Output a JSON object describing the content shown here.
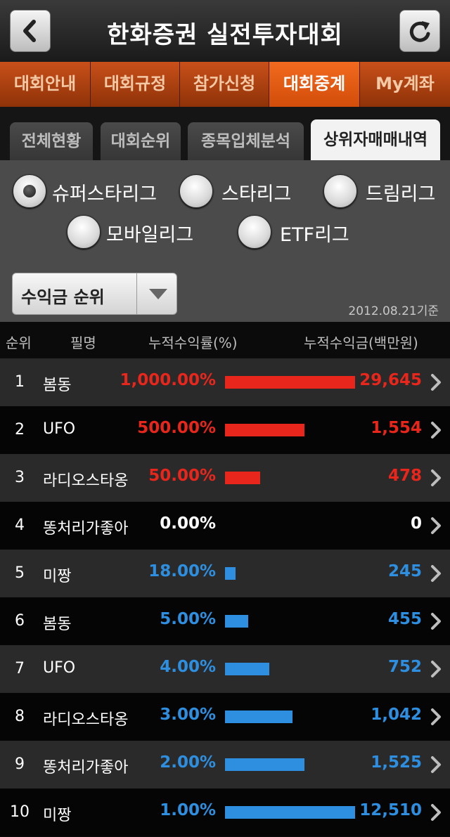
{
  "header": {
    "title": "한화증권 실전투자대회"
  },
  "main_tabs": [
    "대회안내",
    "대회규정",
    "참가신청",
    "대회중계",
    "My계좌"
  ],
  "main_tab_active": 3,
  "sub_tabs": [
    "전체현황",
    "대회순위",
    "종목입체분석",
    "상위자매매내역"
  ],
  "sub_tab_active": 3,
  "leagues": [
    {
      "label": "슈퍼스타리그",
      "selected": true
    },
    {
      "label": "스타리그",
      "selected": false
    },
    {
      "label": "드림리그",
      "selected": false
    },
    {
      "label": "모바일리그",
      "selected": false
    },
    {
      "label": "ETF리그",
      "selected": false
    }
  ],
  "dropdown": {
    "value": "수익금 순위"
  },
  "base_date": "2012.08.21기준",
  "table": {
    "headers": {
      "rank": "순위",
      "name": "필명",
      "rate": "누적수익률(%)",
      "amount": "누적수익금(백만원)"
    },
    "rows": [
      {
        "rank": "1",
        "name": "봄동",
        "rate": "1,000.00%",
        "amount": "29,645",
        "tone": "red",
        "bar_fraction": 1.0
      },
      {
        "rank": "2",
        "name": "UFO",
        "rate": "500.00%",
        "amount": "1,554",
        "tone": "red",
        "bar_fraction": 0.61
      },
      {
        "rank": "3",
        "name": "라디오스타옹",
        "rate": "50.00%",
        "amount": "478",
        "tone": "red",
        "bar_fraction": 0.27
      },
      {
        "rank": "4",
        "name": "똥처리가좋아",
        "rate": "0.00%",
        "amount": "0",
        "tone": "white",
        "bar_fraction": 0
      },
      {
        "rank": "5",
        "name": "미짱",
        "rate": "18.00%",
        "amount": "245",
        "tone": "blue",
        "bar_fraction": 0.08
      },
      {
        "rank": "6",
        "name": "봄동",
        "rate": "5.00%",
        "amount": "455",
        "tone": "blue",
        "bar_fraction": 0.18
      },
      {
        "rank": "7",
        "name": "UFO",
        "rate": "4.00%",
        "amount": "752",
        "tone": "blue",
        "bar_fraction": 0.34
      },
      {
        "rank": "8",
        "name": "라디오스타옹",
        "rate": "3.00%",
        "amount": "1,042",
        "tone": "blue",
        "bar_fraction": 0.52
      },
      {
        "rank": "9",
        "name": "똥처리가좋아",
        "rate": "2.00%",
        "amount": "1,525",
        "tone": "blue",
        "bar_fraction": 0.61
      },
      {
        "rank": "10",
        "name": "미짱",
        "rate": "1.00%",
        "amount": "12,510",
        "tone": "blue",
        "bar_fraction": 1.0
      }
    ]
  },
  "colors": {
    "accent": "#e85a14",
    "positive": "#e8261c",
    "negative": "#2e8fe0"
  }
}
